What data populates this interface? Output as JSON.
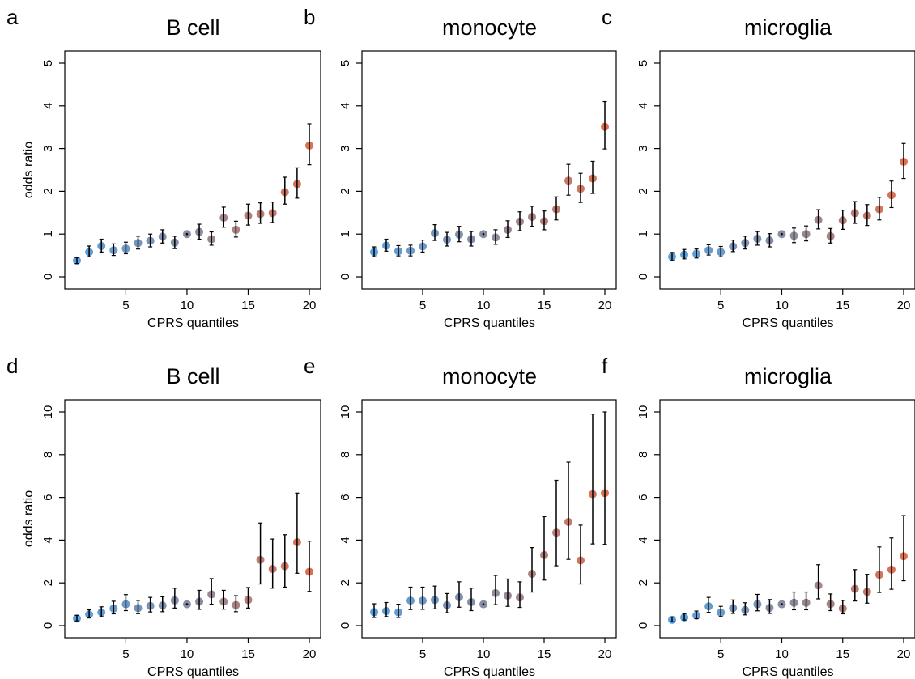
{
  "figure": {
    "panels": [
      "a",
      "b",
      "c",
      "d",
      "e",
      "f"
    ]
  },
  "chart_data": [
    {
      "panel": "a",
      "type": "scatter",
      "title": "B cell",
      "xlabel": "CPRS quantiles",
      "ylabel": "odds ratio",
      "xlim": [
        0.5,
        20.5
      ],
      "ylim": [
        0,
        5
      ],
      "xticks": [
        5,
        10,
        15,
        20
      ],
      "yticks": [
        0,
        1,
        2,
        3,
        4,
        5
      ],
      "error_bars": true,
      "x": [
        1,
        2,
        3,
        4,
        5,
        6,
        7,
        8,
        9,
        10,
        11,
        12,
        13,
        14,
        15,
        16,
        17,
        18,
        19,
        20
      ],
      "y": [
        0.38,
        0.58,
        0.72,
        0.62,
        0.66,
        0.79,
        0.84,
        0.94,
        0.8,
        1.0,
        1.05,
        0.88,
        1.38,
        1.1,
        1.43,
        1.47,
        1.49,
        1.98,
        2.17,
        3.07
      ],
      "lower": [
        0.31,
        0.47,
        0.58,
        0.5,
        0.54,
        0.65,
        0.7,
        0.79,
        0.66,
        1.0,
        0.88,
        0.74,
        1.16,
        0.93,
        1.21,
        1.25,
        1.27,
        1.7,
        1.84,
        2.62
      ],
      "upper": [
        0.45,
        0.72,
        0.88,
        0.77,
        0.81,
        0.95,
        1.0,
        1.1,
        0.95,
        1.0,
        1.23,
        1.05,
        1.63,
        1.3,
        1.7,
        1.73,
        1.75,
        2.33,
        2.55,
        3.58
      ]
    },
    {
      "panel": "b",
      "type": "scatter",
      "title": "monocyte",
      "xlabel": "CPRS quantiles",
      "ylabel": "",
      "xlim": [
        0.5,
        20.5
      ],
      "ylim": [
        0,
        5
      ],
      "xticks": [
        5,
        10,
        15,
        20
      ],
      "yticks": [
        0,
        1,
        2,
        3,
        4,
        5
      ],
      "error_bars": true,
      "x": [
        1,
        2,
        3,
        4,
        5,
        6,
        7,
        8,
        9,
        10,
        11,
        12,
        13,
        14,
        15,
        16,
        17,
        18,
        19,
        20
      ],
      "y": [
        0.58,
        0.73,
        0.6,
        0.61,
        0.71,
        1.02,
        0.87,
        0.99,
        0.88,
        1.0,
        0.92,
        1.1,
        1.29,
        1.4,
        1.3,
        1.58,
        2.25,
        2.06,
        2.3,
        3.51
      ],
      "lower": [
        0.47,
        0.6,
        0.49,
        0.49,
        0.58,
        0.85,
        0.72,
        0.82,
        0.72,
        1.0,
        0.76,
        0.92,
        1.08,
        1.18,
        1.1,
        1.33,
        1.91,
        1.74,
        1.95,
        2.99
      ],
      "upper": [
        0.7,
        0.88,
        0.73,
        0.74,
        0.86,
        1.22,
        1.04,
        1.18,
        1.06,
        1.0,
        1.1,
        1.31,
        1.52,
        1.65,
        1.54,
        1.87,
        2.63,
        2.42,
        2.7,
        4.1
      ]
    },
    {
      "panel": "c",
      "type": "scatter",
      "title": "microglia",
      "xlabel": "CPRS quantiles",
      "ylabel": "",
      "xlim": [
        0.5,
        20.5
      ],
      "ylim": [
        0,
        5
      ],
      "xticks": [
        5,
        10,
        15,
        20
      ],
      "yticks": [
        0,
        1,
        2,
        3,
        4,
        5
      ],
      "error_bars": true,
      "x": [
        1,
        2,
        3,
        4,
        5,
        6,
        7,
        8,
        9,
        10,
        11,
        12,
        13,
        14,
        15,
        16,
        17,
        18,
        19,
        20
      ],
      "y": [
        0.47,
        0.52,
        0.54,
        0.62,
        0.58,
        0.71,
        0.79,
        0.89,
        0.85,
        1.0,
        0.96,
        1.0,
        1.33,
        0.95,
        1.32,
        1.49,
        1.43,
        1.58,
        1.91,
        2.69
      ],
      "lower": [
        0.38,
        0.42,
        0.44,
        0.51,
        0.47,
        0.59,
        0.65,
        0.74,
        0.7,
        1.0,
        0.8,
        0.84,
        1.12,
        0.79,
        1.11,
        1.25,
        1.2,
        1.33,
        1.62,
        2.3
      ],
      "upper": [
        0.57,
        0.64,
        0.65,
        0.75,
        0.71,
        0.86,
        0.95,
        1.06,
        1.01,
        1.0,
        1.14,
        1.19,
        1.57,
        1.13,
        1.56,
        1.76,
        1.69,
        1.86,
        2.24,
        3.12
      ]
    },
    {
      "panel": "d",
      "type": "scatter",
      "title": "B cell",
      "xlabel": "CPRS quantiles",
      "ylabel": "odds ratio",
      "xlim": [
        0.5,
        20.5
      ],
      "ylim": [
        0,
        10
      ],
      "xticks": [
        5,
        10,
        15,
        20
      ],
      "yticks": [
        0,
        2,
        4,
        6,
        8,
        10
      ],
      "error_bars": true,
      "x": [
        1,
        2,
        3,
        4,
        5,
        6,
        7,
        8,
        9,
        10,
        11,
        12,
        13,
        14,
        15,
        16,
        17,
        18,
        19,
        20
      ],
      "y": [
        0.33,
        0.52,
        0.62,
        0.8,
        1.0,
        0.82,
        0.92,
        0.94,
        1.18,
        1.0,
        1.12,
        1.46,
        1.12,
        0.96,
        1.2,
        3.08,
        2.65,
        2.78,
        3.9,
        2.52
      ],
      "lower": [
        0.22,
        0.36,
        0.42,
        0.55,
        0.7,
        0.56,
        0.64,
        0.65,
        0.82,
        1.0,
        0.76,
        1.0,
        0.77,
        0.65,
        0.82,
        1.95,
        1.75,
        1.8,
        2.45,
        1.6
      ],
      "upper": [
        0.48,
        0.74,
        0.88,
        1.14,
        1.45,
        1.18,
        1.32,
        1.35,
        1.75,
        1.0,
        1.65,
        2.2,
        1.65,
        1.4,
        1.78,
        4.8,
        4.05,
        4.25,
        6.2,
        3.95
      ]
    },
    {
      "panel": "e",
      "type": "scatter",
      "title": "monocyte",
      "xlabel": "CPRS quantiles",
      "ylabel": "",
      "xlim": [
        0.5,
        20.5
      ],
      "ylim": [
        0,
        10
      ],
      "xticks": [
        5,
        10,
        15,
        20
      ],
      "yticks": [
        0,
        2,
        4,
        6,
        8,
        10
      ],
      "error_bars": true,
      "x": [
        1,
        2,
        3,
        4,
        5,
        6,
        7,
        8,
        9,
        10,
        11,
        12,
        13,
        14,
        15,
        16,
        17,
        18,
        19,
        20
      ],
      "y": [
        0.63,
        0.68,
        0.62,
        1.17,
        1.17,
        1.2,
        0.95,
        1.33,
        1.1,
        1.0,
        1.52,
        1.4,
        1.32,
        2.42,
        3.3,
        4.35,
        4.85,
        3.05,
        6.15,
        6.2
      ],
      "lower": [
        0.38,
        0.42,
        0.38,
        0.75,
        0.76,
        0.78,
        0.6,
        0.86,
        0.7,
        1.0,
        0.98,
        0.9,
        0.85,
        1.57,
        2.13,
        2.8,
        3.1,
        1.95,
        3.82,
        3.8
      ],
      "upper": [
        1.02,
        1.08,
        1.0,
        1.8,
        1.8,
        1.85,
        1.5,
        2.05,
        1.75,
        1.0,
        2.35,
        2.18,
        2.05,
        3.65,
        5.1,
        6.8,
        7.65,
        4.7,
        9.9,
        10.0
      ]
    },
    {
      "panel": "f",
      "type": "scatter",
      "title": "microglia",
      "xlabel": "CPRS quantiles",
      "ylabel": "",
      "xlim": [
        0.5,
        20.5
      ],
      "ylim": [
        0,
        10
      ],
      "xticks": [
        5,
        10,
        15,
        20
      ],
      "yticks": [
        0,
        2,
        4,
        6,
        8,
        10
      ],
      "error_bars": true,
      "x": [
        1,
        2,
        3,
        4,
        5,
        6,
        7,
        8,
        9,
        10,
        11,
        12,
        13,
        14,
        15,
        16,
        17,
        18,
        19,
        20
      ],
      "y": [
        0.27,
        0.38,
        0.47,
        0.9,
        0.61,
        0.82,
        0.73,
        1.0,
        0.83,
        1.0,
        1.07,
        1.07,
        1.88,
        1.01,
        0.8,
        1.72,
        1.58,
        2.38,
        2.62,
        3.25
      ],
      "lower": [
        0.18,
        0.26,
        0.32,
        0.62,
        0.42,
        0.57,
        0.5,
        0.69,
        0.57,
        1.0,
        0.74,
        0.74,
        1.25,
        0.7,
        0.55,
        1.15,
        1.05,
        1.55,
        1.7,
        2.1
      ],
      "upper": [
        0.4,
        0.56,
        0.68,
        1.32,
        0.9,
        1.2,
        1.07,
        1.46,
        1.22,
        1.0,
        1.57,
        1.57,
        2.85,
        1.48,
        1.18,
        2.62,
        2.4,
        3.68,
        4.1,
        5.15
      ]
    }
  ]
}
